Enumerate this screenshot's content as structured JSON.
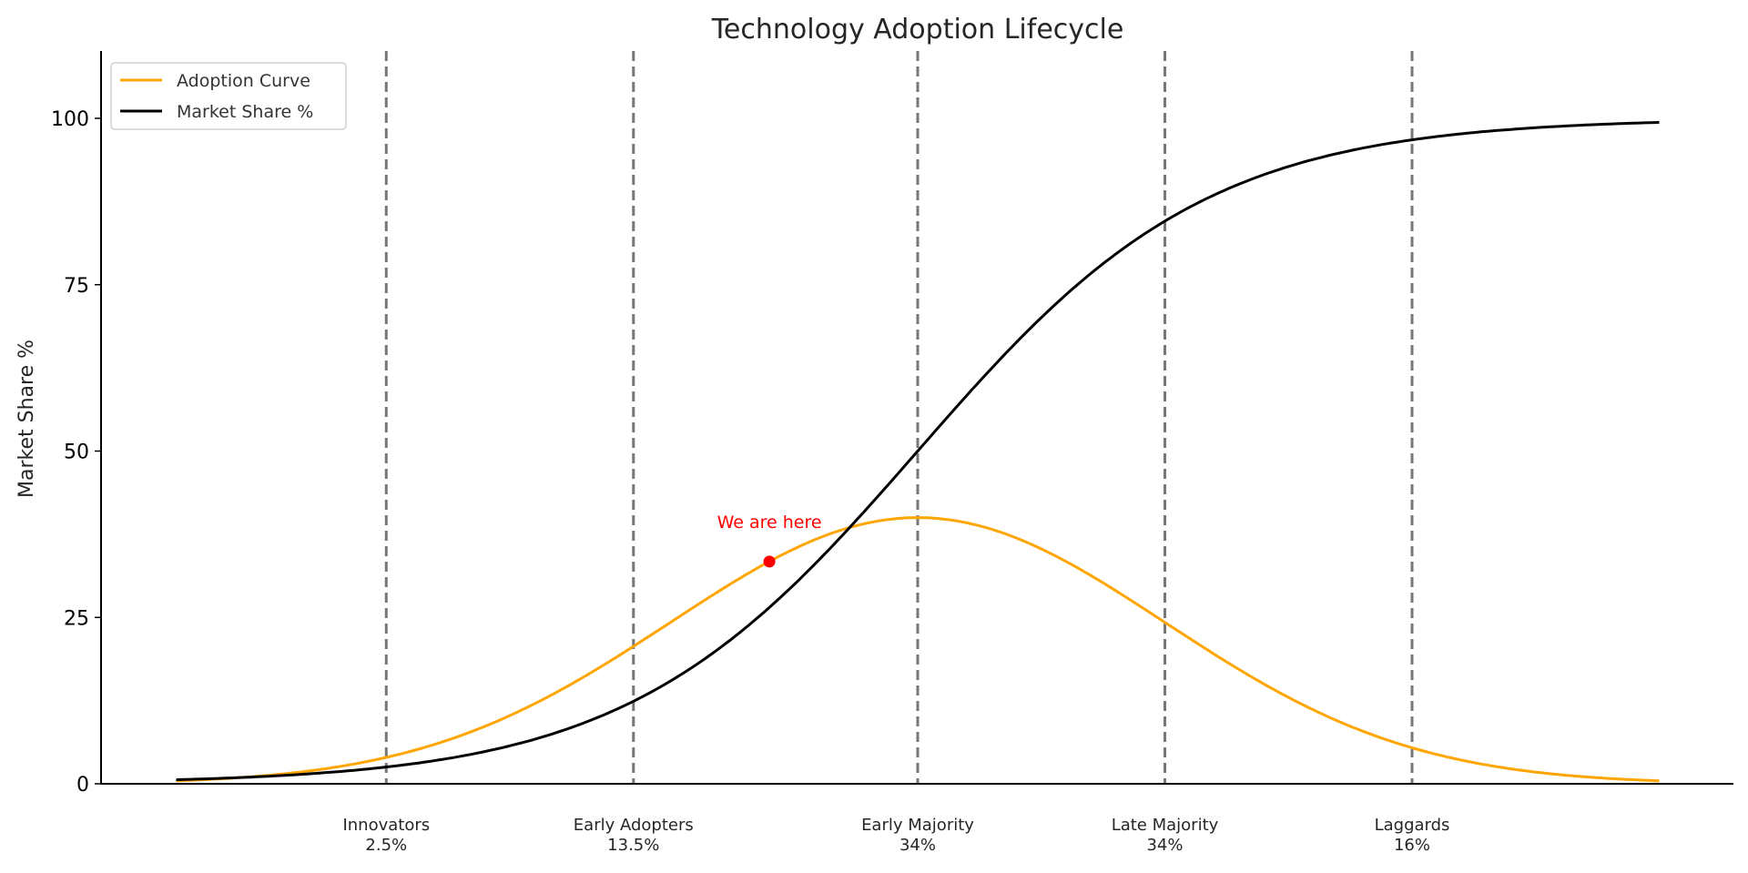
{
  "chart_data": {
    "type": "line",
    "title": "Technology Adoption Lifecycle",
    "xlabel": "",
    "ylabel": "Market Share %",
    "xlim": [
      -3,
      3
    ],
    "ylim": [
      0,
      110
    ],
    "yticks": [
      0,
      25,
      50,
      75,
      100
    ],
    "grid": false,
    "legend_position": "top-left",
    "series": [
      {
        "name": "Adoption Curve",
        "color": "#FFA500",
        "function": "40*exp(-x^2/2)"
      },
      {
        "name": "Market Share %",
        "color": "#000000",
        "function": "100/(1+exp(-1.7*x))"
      }
    ],
    "segments": [
      {
        "name": "Innovators",
        "share": "2.5%",
        "x": -2.15
      },
      {
        "name": "Early Adopters",
        "share": "13.5%",
        "x": -1.15
      },
      {
        "name": "Early Majority",
        "share": "34%",
        "x": 0
      },
      {
        "name": "Late Majority",
        "share": "34%",
        "x": 1
      },
      {
        "name": "Laggards",
        "share": "16%",
        "x": 2
      }
    ],
    "divider_color": "#777777",
    "annotation": {
      "text": "We are here",
      "x": -0.6,
      "y": 33.4,
      "color": "#FF0000"
    }
  }
}
